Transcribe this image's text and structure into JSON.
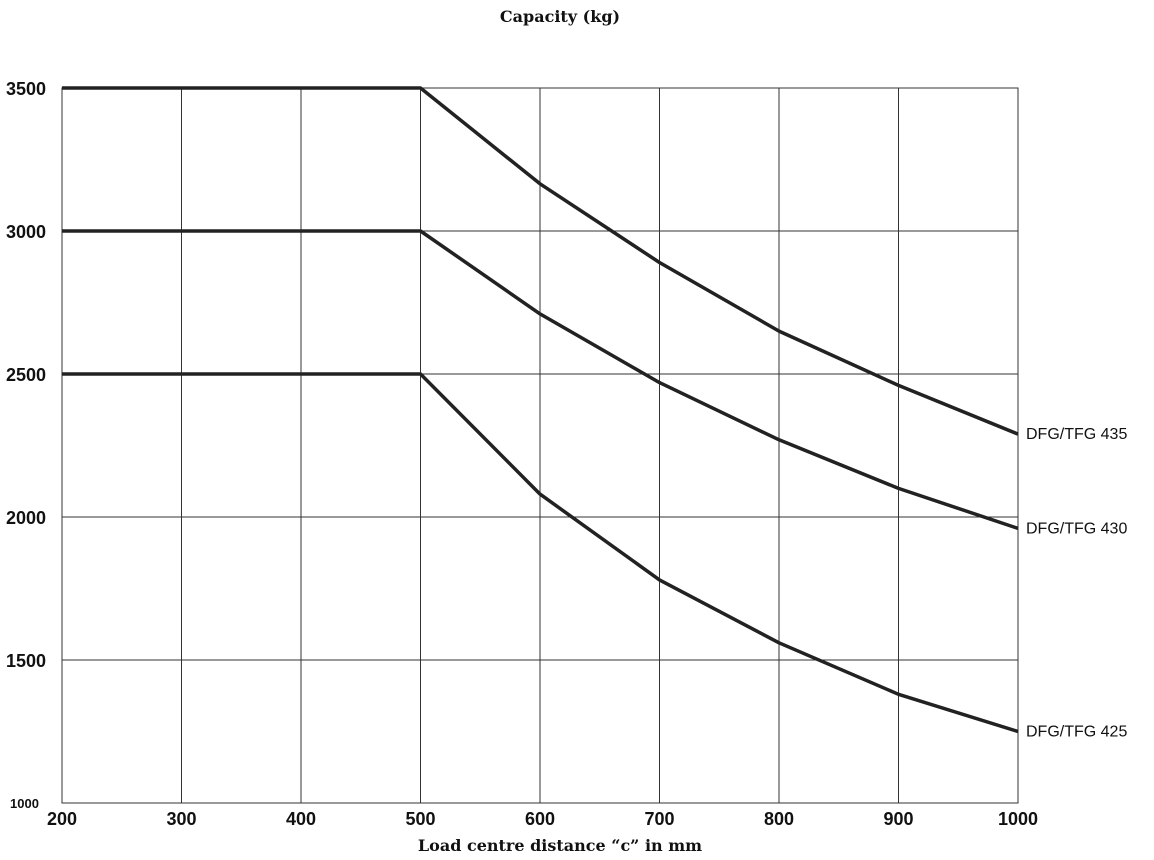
{
  "chart_data": {
    "type": "line",
    "title": "Capacity (kg)",
    "xlabel": "Load centre distance “c” in mm",
    "ylabel": "",
    "xlim": [
      200,
      1000
    ],
    "ylim": [
      1000,
      3500
    ],
    "x_ticks": [
      200,
      300,
      400,
      500,
      600,
      700,
      800,
      900,
      1000
    ],
    "y_ticks": [
      1000,
      1500,
      2000,
      2500,
      3000,
      3500
    ],
    "grid": true,
    "series_line_color": "#222222",
    "series": [
      {
        "name": "DFG/TFG 435",
        "x": [
          200,
          500,
          600,
          700,
          800,
          900,
          1000
        ],
        "y": [
          3500,
          3500,
          3165,
          2890,
          2650,
          2460,
          2290
        ]
      },
      {
        "name": "DFG/TFG 430",
        "x": [
          200,
          500,
          600,
          700,
          800,
          900,
          1000
        ],
        "y": [
          3000,
          3000,
          2710,
          2470,
          2270,
          2100,
          1960
        ]
      },
      {
        "name": "DFG/TFG 425",
        "x": [
          200,
          500,
          600,
          700,
          800,
          900,
          1000
        ],
        "y": [
          2500,
          2500,
          2080,
          1780,
          1560,
          1380,
          1250
        ]
      }
    ]
  }
}
